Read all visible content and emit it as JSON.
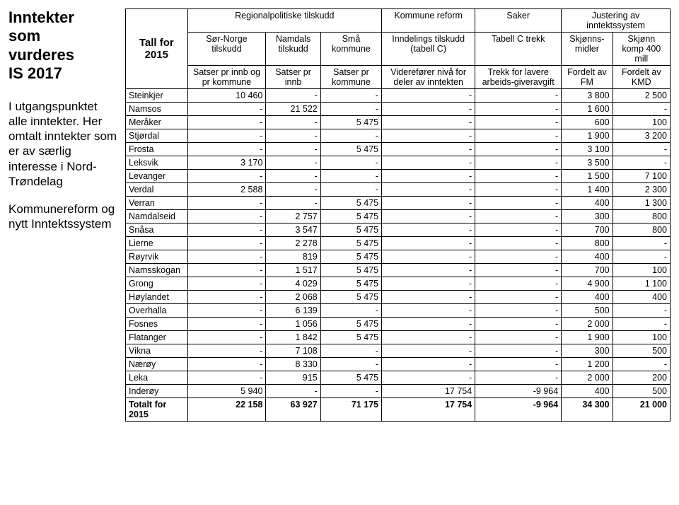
{
  "sidebar": {
    "title_lines": [
      "Inntekter",
      "som",
      "vurderes",
      "IS 2017"
    ],
    "para1": "I utgangspunktet alle inntekter. Her omtalt inntekter som er av særlig interesse i Nord-Trøndelag",
    "para2": "Kommunereform og nytt Inntektssystem"
  },
  "table": {
    "tall_label": "Tall for 2015",
    "group_headers": {
      "regionalpolitiske": "Regionalpolitiske tilskudd",
      "kommune_reform": "Kommune reform",
      "saker": "Saker",
      "justering": "Justering av inntektssystem"
    },
    "sub_headers": [
      "Sør-Norge tilskudd",
      "Namdals tilskudd",
      "Små kommune",
      "Inndelings tilskudd (tabell C)",
      "Tabell C trekk",
      "Skjønns-midler",
      "Skjønn komp 400 mill"
    ],
    "sub_headers2": [
      "Satser pr innb og pr kommune",
      "Satser pr innb",
      "Satser pr kommune",
      "Viderefører nivå for deler av inntekten",
      "Trekk for lavere arbeids-giveravgift",
      "Fordelt av FM",
      "Fordelt av KMD"
    ],
    "rows": [
      {
        "name": "Steinkjer",
        "v": [
          "10 460",
          "-",
          "-",
          "-",
          "-",
          "3 800",
          "2 500"
        ]
      },
      {
        "name": "Namsos",
        "v": [
          "-",
          "21 522",
          "-",
          "-",
          "-",
          "1 600",
          "-"
        ]
      },
      {
        "name": "Meråker",
        "v": [
          "-",
          "-",
          "5 475",
          "-",
          "-",
          "600",
          "100"
        ]
      },
      {
        "name": "Stjørdal",
        "v": [
          "-",
          "-",
          "-",
          "-",
          "-",
          "1 900",
          "3 200"
        ]
      },
      {
        "name": "Frosta",
        "v": [
          "-",
          "-",
          "5 475",
          "-",
          "-",
          "3 100",
          "-"
        ]
      },
      {
        "name": "Leksvik",
        "v": [
          "3 170",
          "-",
          "-",
          "-",
          "-",
          "3 500",
          "-"
        ]
      },
      {
        "name": "Levanger",
        "v": [
          "-",
          "-",
          "-",
          "-",
          "-",
          "1 500",
          "7 100"
        ]
      },
      {
        "name": "Verdal",
        "v": [
          "2 588",
          "-",
          "-",
          "-",
          "-",
          "1 400",
          "2 300"
        ]
      },
      {
        "name": "Verran",
        "v": [
          "-",
          "-",
          "5 475",
          "-",
          "-",
          "400",
          "1 300"
        ]
      },
      {
        "name": "Namdalseid",
        "v": [
          "-",
          "2 757",
          "5 475",
          "-",
          "-",
          "300",
          "800"
        ]
      },
      {
        "name": "Snåsa",
        "v": [
          "-",
          "3 547",
          "5 475",
          "-",
          "-",
          "700",
          "800"
        ]
      },
      {
        "name": "Lierne",
        "v": [
          "-",
          "2 278",
          "5 475",
          "-",
          "-",
          "800",
          "-"
        ]
      },
      {
        "name": "Røyrvik",
        "v": [
          "-",
          "819",
          "5 475",
          "-",
          "-",
          "400",
          "-"
        ]
      },
      {
        "name": "Namsskogan",
        "v": [
          "-",
          "1 517",
          "5 475",
          "-",
          "-",
          "700",
          "100"
        ]
      },
      {
        "name": "Grong",
        "v": [
          "-",
          "4 029",
          "5 475",
          "-",
          "-",
          "4 900",
          "1 100"
        ]
      },
      {
        "name": "Høylandet",
        "v": [
          "-",
          "2 068",
          "5 475",
          "-",
          "-",
          "400",
          "400"
        ]
      },
      {
        "name": "Overhalla",
        "v": [
          "-",
          "6 139",
          "-",
          "-",
          "-",
          "500",
          "-"
        ]
      },
      {
        "name": "Fosnes",
        "v": [
          "-",
          "1 056",
          "5 475",
          "-",
          "-",
          "2 000",
          "-"
        ]
      },
      {
        "name": "Flatanger",
        "v": [
          "-",
          "1 842",
          "5 475",
          "-",
          "-",
          "1 900",
          "100"
        ]
      },
      {
        "name": "Vikna",
        "v": [
          "-",
          "7 108",
          "-",
          "-",
          "-",
          "300",
          "500"
        ]
      },
      {
        "name": "Nærøy",
        "v": [
          "-",
          "8 330",
          "-",
          "-",
          "-",
          "1 200",
          "-"
        ]
      },
      {
        "name": "Leka",
        "v": [
          "-",
          "915",
          "5 475",
          "-",
          "-",
          "2 000",
          "200"
        ]
      },
      {
        "name": "Inderøy",
        "v": [
          "5 940",
          "-",
          "-",
          "17 754",
          "-9 964",
          "400",
          "500"
        ]
      }
    ],
    "total": {
      "name": "Totalt for 2015",
      "v": [
        "22 158",
        "63 927",
        "71 175",
        "17 754",
        "-9 964",
        "34 300",
        "21 000"
      ]
    }
  }
}
